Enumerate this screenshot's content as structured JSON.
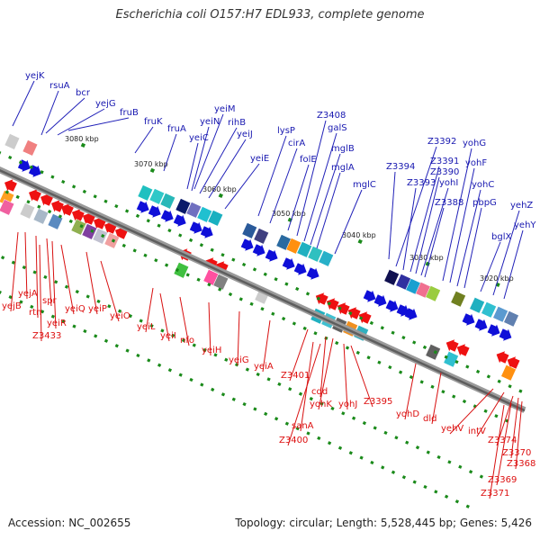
{
  "title": "Escherichia coli O157:H7 EDL933, complete genome",
  "footer": {
    "accession": "Accession: NC_002655",
    "summary": "Topology: circular; Length: 5,528,445 bp; Genes: 5,426"
  },
  "colors": {
    "forward_arrow": "#0f0fd8",
    "reverse_arrow": "#ee1111",
    "forward_label": "#1818b0",
    "reverse_label": "#dd1010",
    "backbone": "#777777",
    "tick": "#1a8a1a"
  },
  "scale_labels": [
    "3080 kbp",
    "3070 kbp",
    "3060 kbp",
    "3050 kbp",
    "3040 kbp",
    "3030 kbp",
    "3020 kbp"
  ],
  "forward_genes": [
    "yejK",
    "rsuA",
    "bcr",
    "yejG",
    "fruB",
    "fruK",
    "fruA",
    "yeiC",
    "yeiM",
    "yeiN",
    "rihB",
    "yeiJ",
    "yeiE",
    "lysP",
    "cirA",
    "folE",
    "Z3408",
    "galS",
    "mglB",
    "mglA",
    "mglC",
    "Z3394",
    "Z3392",
    "Z3393",
    "Z3391",
    "Z3390",
    "yohI",
    "Z3388",
    "yohG",
    "yohF",
    "yohC",
    "pbpG",
    "bglX",
    "yehZ",
    "yehY"
  ],
  "reverse_genes": [
    "yejB",
    "yejA",
    "rtn",
    "spr",
    "yeiR",
    "yeiQ",
    "Z3433",
    "yeiP",
    "yeiO",
    "yeiL",
    "yeiI",
    "nfo",
    "yeiH",
    "yeiG",
    "yeiA",
    "Z3401",
    "cdd",
    "yohK",
    "sanA",
    "yohJ",
    "Z3395",
    "Z3400",
    "yohD",
    "dld",
    "yehV",
    "intV",
    "Z3374",
    "Z3370",
    "Z3368",
    "Z3369",
    "Z3371"
  ]
}
